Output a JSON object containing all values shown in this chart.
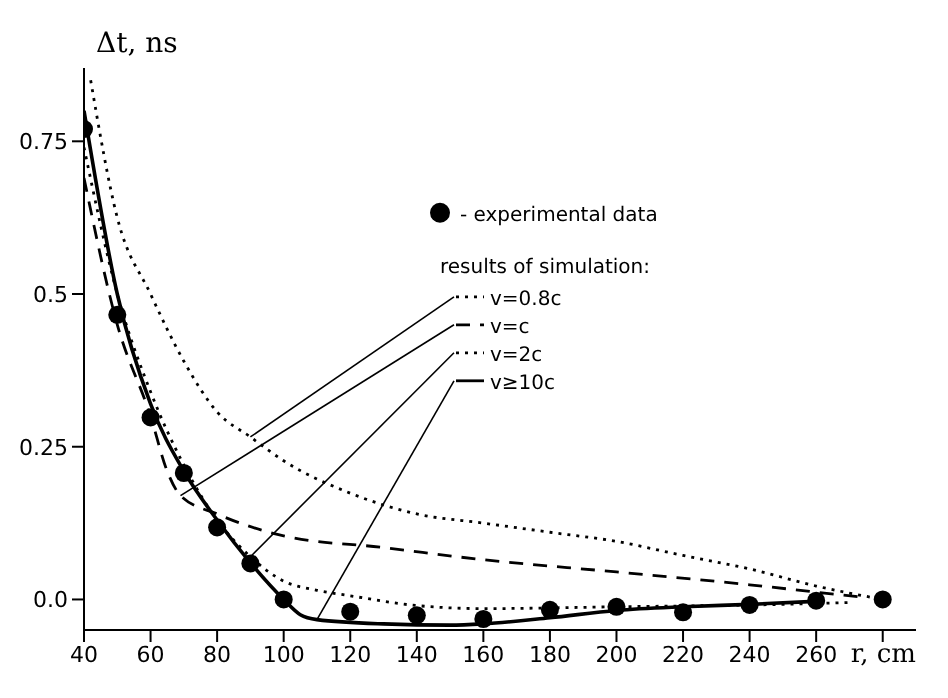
{
  "chart_data": {
    "type": "line",
    "xlabel": "r, cm",
    "ylabel": "Δt, ns",
    "legend": "right",
    "legend_title": "results of simulation:",
    "xlim": [
      40,
      290
    ],
    "xticks": [
      40,
      60,
      80,
      100,
      120,
      140,
      160,
      180,
      200,
      220,
      240,
      260,
      {
        "value": 280,
        "label": null
      }
    ],
    "ylim": [
      -0.05,
      0.87
    ],
    "yticks": [
      {
        "value": 0,
        "label": "0.0"
      },
      0.25,
      0.5,
      0.75
    ],
    "series": [
      {
        "name": "- experimental data",
        "type": "scatter",
        "marker": "circle",
        "color": "#000000",
        "x": [
          40,
          50,
          60,
          70,
          80,
          90,
          100,
          120,
          140,
          160,
          180,
          200,
          220,
          240,
          260,
          280
        ],
        "values": [
          0.77,
          0.466,
          0.298,
          0.207,
          0.118,
          0.059,
          0.0,
          -0.02,
          -0.026,
          -0.032,
          -0.017,
          -0.012,
          -0.021,
          -0.009,
          -0.002,
          0.0
        ]
      },
      {
        "name": "v=0.8c",
        "line_style": "dotted",
        "color": "#000000",
        "x": [
          42,
          50,
          60,
          70,
          80,
          90,
          100,
          120,
          140,
          160,
          180,
          200,
          220,
          240,
          260,
          280
        ],
        "values": [
          0.85,
          0.625,
          0.5,
          0.39,
          0.307,
          0.266,
          0.227,
          0.174,
          0.14,
          0.125,
          0.11,
          0.095,
          0.072,
          0.05,
          0.022,
          0.0
        ]
      },
      {
        "name": "v=c",
        "line_style": "dashed",
        "color": "#000000",
        "x": [
          40,
          50,
          60,
          65,
          69,
          80,
          100,
          130,
          160,
          200,
          240,
          260,
          275
        ],
        "values": [
          0.69,
          0.45,
          0.3,
          0.21,
          0.17,
          0.14,
          0.104,
          0.085,
          0.065,
          0.045,
          0.024,
          0.012,
          0.003
        ]
      },
      {
        "name": "v=2c",
        "line_style": "dotted",
        "color": "#000000",
        "x": [
          40,
          50,
          60,
          70,
          80,
          90,
          100,
          110,
          120,
          140,
          160,
          200,
          250,
          270
        ],
        "values": [
          0.74,
          0.5,
          0.34,
          0.22,
          0.13,
          0.07,
          0.03,
          0.015,
          0.006,
          -0.01,
          -0.015,
          -0.012,
          -0.008,
          -0.005
        ]
      },
      {
        "name": "v≥10c",
        "line_style": "solid",
        "color": "#000000",
        "x": [
          40,
          50,
          60,
          70,
          80,
          90,
          100,
          105,
          110,
          130,
          150,
          160,
          180,
          200,
          220,
          240,
          260
        ],
        "values": [
          0.8,
          0.5,
          0.32,
          0.21,
          0.13,
          0.06,
          0.0,
          -0.025,
          -0.033,
          -0.04,
          -0.042,
          -0.04,
          -0.03,
          -0.018,
          -0.012,
          -0.008,
          -0.003
        ]
      }
    ]
  }
}
